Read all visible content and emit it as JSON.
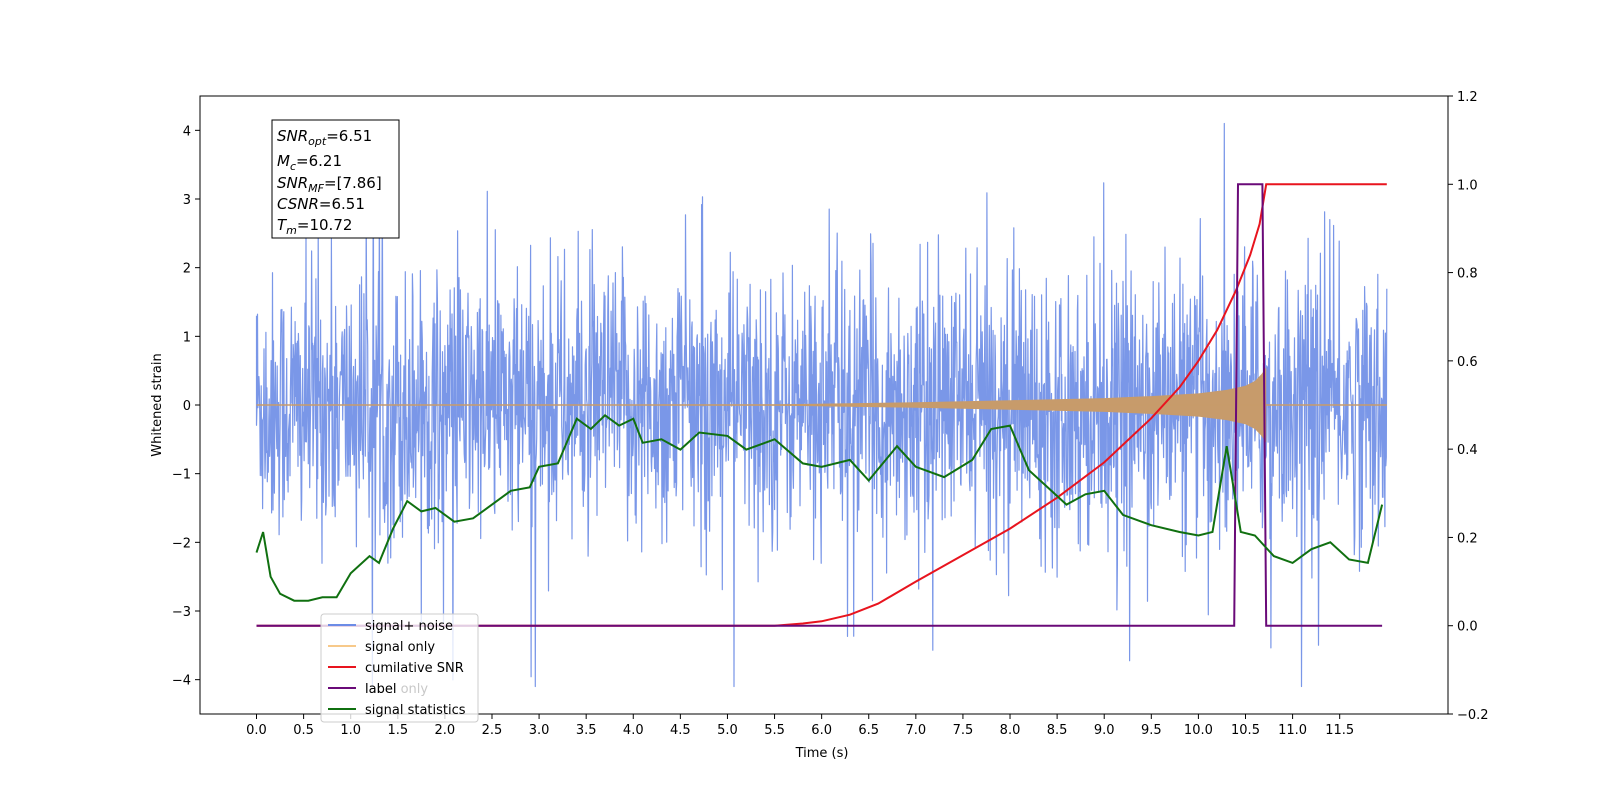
{
  "chart_data": {
    "type": "line",
    "xlabel": "Time (s)",
    "ylabel": "Whitened strain",
    "xlim": [
      -0.6,
      12.65
    ],
    "ylim": [
      -4.5,
      4.5
    ],
    "y2lim": [
      -0.2,
      1.2
    ],
    "xticks": [
      "0.0",
      "0.5",
      "1.0",
      "1.5",
      "2.0",
      "2.5",
      "3.0",
      "3.5",
      "4.0",
      "4.5",
      "5.0",
      "5.5",
      "6.0",
      "6.5",
      "7.0",
      "7.5",
      "8.0",
      "8.5",
      "9.0",
      "9.5",
      "10.0",
      "10.5",
      "11.0",
      "11.5"
    ],
    "yticks": [
      "-4",
      "-3",
      "-2",
      "-1",
      "0",
      "1",
      "2",
      "3",
      "4"
    ],
    "y2ticks": [
      "-0.2",
      "0.0",
      "0.2",
      "0.4",
      "0.6",
      "0.8",
      "1.0",
      "1.2"
    ],
    "grid": false,
    "legend_position": "lower-left",
    "info_box": {
      "snr_opt": "=6.51",
      "mc": "=6.21",
      "snr_mf": "=[7.86]",
      "csnr": "=6.51",
      "tm": "=10.72"
    },
    "series": [
      {
        "name": "signal+ noise",
        "color": "#6c8ce6",
        "axis": "left",
        "description": "whitened noise, approx +-1.5 with spikes to ~4.1, from 0.0 to 12.0 s"
      },
      {
        "name": "signal only",
        "color": "#c79b6b",
        "axis": "left",
        "chirp_envelope": {
          "t": [
            0,
            5.5,
            7,
            8,
            9,
            9.5,
            10,
            10.3,
            10.5,
            10.6,
            10.67,
            10.72
          ],
          "a": [
            0,
            0.01,
            0.04,
            0.07,
            0.1,
            0.13,
            0.17,
            0.22,
            0.28,
            0.35,
            0.45,
            0.55
          ]
        }
      },
      {
        "name": "cumilative SNR",
        "color": "#e8141e",
        "axis": "right",
        "x": [
          0,
          5.5,
          5.8,
          6.0,
          6.3,
          6.6,
          7.0,
          7.5,
          8.0,
          8.5,
          9.0,
          9.5,
          9.8,
          10.0,
          10.2,
          10.4,
          10.55,
          10.65,
          10.72,
          12.0
        ],
        "y": [
          0,
          0,
          0.005,
          0.01,
          0.025,
          0.05,
          0.1,
          0.16,
          0.22,
          0.29,
          0.37,
          0.47,
          0.54,
          0.6,
          0.67,
          0.76,
          0.84,
          0.91,
          1.0,
          1.0
        ]
      },
      {
        "name": "label",
        "color": "#6a0a78",
        "axis": "right",
        "x": [
          0,
          10.38,
          10.42,
          10.68,
          10.72,
          11.95
        ],
        "y": [
          0,
          0,
          1,
          1,
          0,
          0
        ]
      },
      {
        "name": "label only",
        "color": "#c8c8c8",
        "axis": "right",
        "x": [],
        "y": []
      },
      {
        "name": "signal statistics",
        "color": "#107010",
        "axis": "left",
        "x": [
          0,
          0.07,
          0.15,
          0.25,
          0.4,
          0.55,
          0.7,
          0.85,
          1.0,
          1.2,
          1.3,
          1.45,
          1.6,
          1.75,
          1.9,
          2.1,
          2.3,
          2.5,
          2.7,
          2.9,
          3.0,
          3.2,
          3.4,
          3.55,
          3.7,
          3.85,
          4.0,
          4.1,
          4.3,
          4.5,
          4.7,
          5.0,
          5.2,
          5.5,
          5.8,
          6.0,
          6.3,
          6.5,
          6.8,
          7.0,
          7.3,
          7.6,
          7.8,
          8.0,
          8.2,
          8.4,
          8.6,
          8.8,
          9.0,
          9.2,
          9.5,
          9.8,
          10.0,
          10.15,
          10.3,
          10.45,
          10.6,
          10.8,
          11.0,
          11.2,
          11.4,
          11.6,
          11.8,
          11.95
        ],
        "y": [
          -2.15,
          -1.85,
          -2.5,
          -2.75,
          -2.85,
          -2.85,
          -2.8,
          -2.8,
          -2.45,
          -2.2,
          -2.3,
          -1.8,
          -1.4,
          -1.55,
          -1.5,
          -1.7,
          -1.65,
          -1.45,
          -1.25,
          -1.2,
          -0.9,
          -0.85,
          -0.2,
          -0.35,
          -0.15,
          -0.3,
          -0.2,
          -0.55,
          -0.5,
          -0.65,
          -0.4,
          -0.45,
          -0.65,
          -0.5,
          -0.85,
          -0.9,
          -0.8,
          -1.1,
          -0.6,
          -0.9,
          -1.05,
          -0.8,
          -0.35,
          -0.3,
          -0.95,
          -1.2,
          -1.45,
          -1.3,
          -1.25,
          -1.6,
          -1.75,
          -1.85,
          -1.9,
          -1.85,
          -0.6,
          -1.85,
          -1.9,
          -2.2,
          -2.3,
          -2.1,
          -2.0,
          -2.25,
          -2.3,
          -1.45
        ]
      }
    ]
  }
}
